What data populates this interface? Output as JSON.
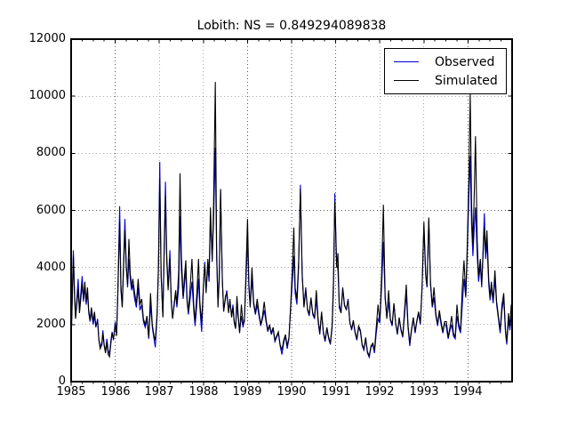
{
  "chart_data": {
    "type": "line",
    "title": "Lobith: NS = 0.849294089838",
    "xlabel": "",
    "ylabel": "",
    "xlim": [
      1985,
      1995
    ],
    "ylim": [
      0,
      12000
    ],
    "x_ticks": [
      1985,
      1986,
      1987,
      1988,
      1989,
      1990,
      1991,
      1992,
      1993,
      1994
    ],
    "y_ticks": [
      0,
      2000,
      4000,
      6000,
      8000,
      10000,
      12000
    ],
    "x_minor_tick_interval": 0.25,
    "grid": "dotted",
    "legend_position": "upper right",
    "series": [
      {
        "name": "Observed",
        "color": "#0000cc"
      },
      {
        "name": "Simulated",
        "color": "#000000"
      }
    ],
    "point_format": [
      "year_fraction",
      "observed_m3s",
      "simulated_m3s"
    ],
    "points": [
      [
        1985.0,
        1450,
        1400
      ],
      [
        1985.02,
        2600,
        2500
      ],
      [
        1985.05,
        4600,
        4400
      ],
      [
        1985.08,
        3000,
        2800
      ],
      [
        1985.1,
        2250,
        2200
      ],
      [
        1985.13,
        2900,
        2700
      ],
      [
        1985.16,
        3600,
        3250
      ],
      [
        1985.19,
        2500,
        2400
      ],
      [
        1985.22,
        3100,
        2900
      ],
      [
        1985.25,
        3700,
        3400
      ],
      [
        1985.28,
        2800,
        2900
      ],
      [
        1985.31,
        3300,
        3500
      ],
      [
        1985.34,
        2700,
        2800
      ],
      [
        1985.37,
        3100,
        3300
      ],
      [
        1985.4,
        2400,
        2500
      ],
      [
        1985.43,
        2100,
        2150
      ],
      [
        1985.46,
        2450,
        2600
      ],
      [
        1985.5,
        2000,
        2100
      ],
      [
        1985.53,
        2300,
        2450
      ],
      [
        1985.56,
        1900,
        1950
      ],
      [
        1985.6,
        2200,
        2100
      ],
      [
        1985.63,
        1500,
        1450
      ],
      [
        1985.66,
        1200,
        1150
      ],
      [
        1985.7,
        1400,
        1300
      ],
      [
        1985.72,
        1800,
        1700
      ],
      [
        1985.75,
        1300,
        1250
      ],
      [
        1985.78,
        1050,
        1000
      ],
      [
        1985.81,
        1500,
        1400
      ],
      [
        1985.84,
        1100,
        950
      ],
      [
        1985.87,
        950,
        870
      ],
      [
        1985.9,
        1400,
        1300
      ],
      [
        1985.93,
        1750,
        1700
      ],
      [
        1985.96,
        1450,
        1500
      ],
      [
        1986.0,
        2100,
        2000
      ],
      [
        1986.03,
        1650,
        1600
      ],
      [
        1986.06,
        3300,
        3100
      ],
      [
        1986.1,
        6150,
        5600
      ],
      [
        1986.13,
        3400,
        3200
      ],
      [
        1986.16,
        2650,
        2600
      ],
      [
        1986.19,
        4200,
        4000
      ],
      [
        1986.22,
        5700,
        5300
      ],
      [
        1986.25,
        4100,
        4000
      ],
      [
        1986.28,
        3300,
        3400
      ],
      [
        1986.31,
        4300,
        5000
      ],
      [
        1986.34,
        3600,
        3800
      ],
      [
        1986.37,
        3200,
        3300
      ],
      [
        1986.4,
        3400,
        3600
      ],
      [
        1986.44,
        2900,
        3100
      ],
      [
        1986.48,
        2600,
        2750
      ],
      [
        1986.52,
        3300,
        3600
      ],
      [
        1986.56,
        2500,
        2700
      ],
      [
        1986.6,
        2700,
        2900
      ],
      [
        1986.64,
        2100,
        2200
      ],
      [
        1986.68,
        1900,
        2000
      ],
      [
        1986.72,
        2200,
        2300
      ],
      [
        1986.76,
        1500,
        1550
      ],
      [
        1986.8,
        2700,
        3100
      ],
      [
        1986.84,
        1900,
        2000
      ],
      [
        1986.88,
        1500,
        1600
      ],
      [
        1986.91,
        1200,
        1450
      ],
      [
        1986.95,
        2300,
        2400
      ],
      [
        1986.98,
        4100,
        3900
      ],
      [
        1987.01,
        7700,
        7100
      ],
      [
        1987.04,
        3900,
        3700
      ],
      [
        1987.08,
        2300,
        2250
      ],
      [
        1987.11,
        4800,
        4500
      ],
      [
        1987.14,
        7000,
        6500
      ],
      [
        1987.17,
        4400,
        4200
      ],
      [
        1987.2,
        3300,
        3200
      ],
      [
        1987.24,
        4600,
        4300
      ],
      [
        1987.27,
        2900,
        2800
      ],
      [
        1987.3,
        2250,
        2200
      ],
      [
        1987.34,
        2700,
        2800
      ],
      [
        1987.37,
        3100,
        3200
      ],
      [
        1987.4,
        2600,
        2700
      ],
      [
        1987.44,
        3300,
        3900
      ],
      [
        1987.47,
        5800,
        7300
      ],
      [
        1987.5,
        3900,
        4400
      ],
      [
        1987.54,
        2900,
        3000
      ],
      [
        1987.57,
        3400,
        3700
      ],
      [
        1987.6,
        3900,
        4250
      ],
      [
        1987.63,
        2800,
        2900
      ],
      [
        1987.66,
        2350,
        2450
      ],
      [
        1987.7,
        2900,
        3300
      ],
      [
        1987.74,
        3500,
        4300
      ],
      [
        1987.78,
        2500,
        2700
      ],
      [
        1987.81,
        1950,
        2100
      ],
      [
        1987.85,
        2700,
        3100
      ],
      [
        1987.89,
        3600,
        4300
      ],
      [
        1987.92,
        2600,
        2800
      ],
      [
        1987.96,
        1750,
        2050
      ],
      [
        1988.0,
        3300,
        3400
      ],
      [
        1988.03,
        4200,
        4100
      ],
      [
        1988.06,
        3200,
        3100
      ],
      [
        1988.1,
        4000,
        4300
      ],
      [
        1988.13,
        3500,
        3700
      ],
      [
        1988.16,
        5800,
        6100
      ],
      [
        1988.2,
        4300,
        4200
      ],
      [
        1988.23,
        5600,
        6200
      ],
      [
        1988.27,
        8200,
        10500
      ],
      [
        1988.3,
        4300,
        4600
      ],
      [
        1988.33,
        2700,
        2600
      ],
      [
        1988.36,
        3600,
        3900
      ],
      [
        1988.39,
        6700,
        6750
      ],
      [
        1988.43,
        3500,
        3600
      ],
      [
        1988.46,
        2500,
        2450
      ],
      [
        1988.5,
        2900,
        3000
      ],
      [
        1988.53,
        3200,
        3100
      ],
      [
        1988.57,
        2450,
        2400
      ],
      [
        1988.6,
        2800,
        2900
      ],
      [
        1988.64,
        2300,
        2250
      ],
      [
        1988.67,
        2700,
        2600
      ],
      [
        1988.7,
        2100,
        2050
      ],
      [
        1988.73,
        1900,
        1850
      ],
      [
        1988.76,
        2700,
        3000
      ],
      [
        1988.79,
        2200,
        2300
      ],
      [
        1988.82,
        1750,
        1700
      ],
      [
        1988.86,
        2300,
        2700
      ],
      [
        1988.9,
        1900,
        2000
      ],
      [
        1988.93,
        2200,
        2100
      ],
      [
        1988.96,
        3300,
        3600
      ],
      [
        1989.0,
        5000,
        5700
      ],
      [
        1989.03,
        3300,
        3500
      ],
      [
        1989.06,
        2650,
        2600
      ],
      [
        1989.1,
        3600,
        4000
      ],
      [
        1989.14,
        2700,
        2800
      ],
      [
        1989.18,
        2350,
        2400
      ],
      [
        1989.22,
        2700,
        2900
      ],
      [
        1989.26,
        2300,
        2400
      ],
      [
        1989.3,
        1950,
        2000
      ],
      [
        1989.34,
        2200,
        2300
      ],
      [
        1989.38,
        2500,
        2800
      ],
      [
        1989.42,
        2100,
        2200
      ],
      [
        1989.46,
        1750,
        1800
      ],
      [
        1989.5,
        1950,
        2000
      ],
      [
        1989.54,
        1650,
        1700
      ],
      [
        1989.58,
        1850,
        1900
      ],
      [
        1989.62,
        1400,
        1450
      ],
      [
        1989.66,
        1550,
        1600
      ],
      [
        1989.7,
        1700,
        1750
      ],
      [
        1989.74,
        1250,
        1300
      ],
      [
        1989.78,
        950,
        1100
      ],
      [
        1989.82,
        1350,
        1450
      ],
      [
        1989.86,
        1600,
        1650
      ],
      [
        1989.9,
        1150,
        1250
      ],
      [
        1989.94,
        1500,
        1550
      ],
      [
        1989.98,
        2600,
        2700
      ],
      [
        1990.02,
        3600,
        4100
      ],
      [
        1990.05,
        4400,
        5400
      ],
      [
        1990.08,
        3100,
        3300
      ],
      [
        1990.12,
        2700,
        2900
      ],
      [
        1990.16,
        4000,
        4200
      ],
      [
        1990.2,
        6900,
        6750
      ],
      [
        1990.24,
        3800,
        3700
      ],
      [
        1990.28,
        2650,
        2600
      ],
      [
        1990.32,
        3300,
        3200
      ],
      [
        1990.36,
        2500,
        2550
      ],
      [
        1990.4,
        2300,
        2350
      ],
      [
        1990.44,
        2900,
        2950
      ],
      [
        1990.48,
        2350,
        2400
      ],
      [
        1990.52,
        2200,
        2250
      ],
      [
        1990.56,
        2900,
        3200
      ],
      [
        1990.6,
        2100,
        2200
      ],
      [
        1990.64,
        1650,
        1700
      ],
      [
        1990.68,
        2400,
        2450
      ],
      [
        1990.72,
        1700,
        1750
      ],
      [
        1990.76,
        1400,
        1450
      ],
      [
        1990.8,
        1850,
        1900
      ],
      [
        1990.84,
        1500,
        1550
      ],
      [
        1990.88,
        1300,
        1350
      ],
      [
        1990.92,
        1900,
        2000
      ],
      [
        1990.95,
        3300,
        3600
      ],
      [
        1990.98,
        6600,
        6300
      ],
      [
        1991.02,
        4200,
        4000
      ],
      [
        1991.05,
        3900,
        4500
      ],
      [
        1991.08,
        2700,
        2600
      ],
      [
        1991.12,
        2450,
        2400
      ],
      [
        1991.16,
        3300,
        3250
      ],
      [
        1991.2,
        2700,
        2650
      ],
      [
        1991.24,
        2500,
        2550
      ],
      [
        1991.28,
        2900,
        2850
      ],
      [
        1991.32,
        2100,
        2050
      ],
      [
        1991.36,
        1800,
        1850
      ],
      [
        1991.4,
        2100,
        2150
      ],
      [
        1991.44,
        1700,
        1750
      ],
      [
        1991.48,
        1450,
        1500
      ],
      [
        1991.52,
        1900,
        1950
      ],
      [
        1991.56,
        1750,
        1800
      ],
      [
        1991.6,
        1250,
        1300
      ],
      [
        1991.64,
        1100,
        1150
      ],
      [
        1991.68,
        1500,
        1550
      ],
      [
        1991.72,
        1000,
        1050
      ],
      [
        1991.76,
        850,
        900
      ],
      [
        1991.8,
        1200,
        1250
      ],
      [
        1991.84,
        1300,
        1350
      ],
      [
        1991.88,
        1000,
        1100
      ],
      [
        1991.92,
        1700,
        1900
      ],
      [
        1991.96,
        2200,
        2700
      ],
      [
        1992.0,
        2050,
        2100
      ],
      [
        1992.04,
        3300,
        3700
      ],
      [
        1992.08,
        4900,
        6200
      ],
      [
        1992.12,
        2900,
        3000
      ],
      [
        1992.16,
        2250,
        2200
      ],
      [
        1992.2,
        2800,
        3200
      ],
      [
        1992.24,
        2150,
        2200
      ],
      [
        1992.28,
        1950,
        2000
      ],
      [
        1992.32,
        2700,
        2750
      ],
      [
        1992.36,
        2000,
        2050
      ],
      [
        1992.4,
        1650,
        1700
      ],
      [
        1992.44,
        2200,
        2250
      ],
      [
        1992.48,
        1800,
        1850
      ],
      [
        1992.52,
        1550,
        1600
      ],
      [
        1992.56,
        2300,
        2500
      ],
      [
        1992.6,
        3100,
        3400
      ],
      [
        1992.64,
        1900,
        2000
      ],
      [
        1992.68,
        1250,
        1350
      ],
      [
        1992.72,
        1800,
        1850
      ],
      [
        1992.76,
        2200,
        2250
      ],
      [
        1992.8,
        1700,
        1750
      ],
      [
        1992.84,
        2100,
        2150
      ],
      [
        1992.88,
        2400,
        2450
      ],
      [
        1992.92,
        2000,
        2050
      ],
      [
        1992.96,
        3300,
        3400
      ],
      [
        1993.0,
        5450,
        5600
      ],
      [
        1993.04,
        3700,
        3800
      ],
      [
        1993.07,
        3300,
        3350
      ],
      [
        1993.11,
        5650,
        5750
      ],
      [
        1993.15,
        3400,
        3500
      ],
      [
        1993.19,
        2600,
        2650
      ],
      [
        1993.23,
        2950,
        3300
      ],
      [
        1993.27,
        2300,
        2400
      ],
      [
        1993.31,
        1950,
        2000
      ],
      [
        1993.35,
        2400,
        2500
      ],
      [
        1993.39,
        2000,
        2100
      ],
      [
        1993.43,
        1700,
        1750
      ],
      [
        1993.47,
        2050,
        2100
      ],
      [
        1993.51,
        1900,
        2100
      ],
      [
        1993.55,
        1500,
        1550
      ],
      [
        1993.59,
        1800,
        1900
      ],
      [
        1993.63,
        2000,
        2300
      ],
      [
        1993.67,
        1600,
        1700
      ],
      [
        1993.71,
        1500,
        1550
      ],
      [
        1993.75,
        2300,
        2700
      ],
      [
        1993.79,
        1900,
        2000
      ],
      [
        1993.83,
        1700,
        1800
      ],
      [
        1993.87,
        2700,
        3300
      ],
      [
        1993.91,
        3600,
        4250
      ],
      [
        1993.95,
        2950,
        3000
      ],
      [
        1993.98,
        4300,
        4600
      ],
      [
        1994.02,
        6500,
        7200
      ],
      [
        1994.05,
        7900,
        10100
      ],
      [
        1994.08,
        5500,
        6200
      ],
      [
        1994.11,
        4400,
        4800
      ],
      [
        1994.14,
        5300,
        6400
      ],
      [
        1994.17,
        6100,
        8600
      ],
      [
        1994.21,
        4400,
        4900
      ],
      [
        1994.24,
        3500,
        3700
      ],
      [
        1994.28,
        4100,
        4300
      ],
      [
        1994.31,
        3300,
        3400
      ],
      [
        1994.34,
        4600,
        4400
      ],
      [
        1994.37,
        5900,
        5400
      ],
      [
        1994.4,
        4300,
        4500
      ],
      [
        1994.43,
        4900,
        5300
      ],
      [
        1994.47,
        3400,
        3600
      ],
      [
        1994.5,
        2850,
        2950
      ],
      [
        1994.53,
        3300,
        3500
      ],
      [
        1994.57,
        2750,
        2850
      ],
      [
        1994.61,
        3600,
        3900
      ],
      [
        1994.65,
        2700,
        2800
      ],
      [
        1994.69,
        2200,
        2300
      ],
      [
        1994.73,
        1700,
        1800
      ],
      [
        1994.77,
        2500,
        2700
      ],
      [
        1994.81,
        2900,
        3100
      ],
      [
        1994.85,
        1700,
        1800
      ],
      [
        1994.88,
        1300,
        1400
      ],
      [
        1994.92,
        2200,
        2400
      ],
      [
        1994.95,
        1800,
        1900
      ],
      [
        1994.98,
        2300,
        2700
      ]
    ]
  }
}
